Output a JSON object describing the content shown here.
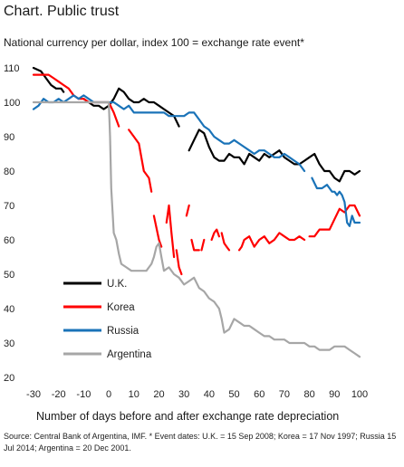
{
  "title": "Chart. Public trust",
  "subtitle": "National currency per dollar, index 100 = exchange rate event*",
  "xlabel": "Number of days before and after exchange rate depreciation",
  "source": "Source: Central Bank of Argentina, IMF. * Event dates: U.K. = 15 Sep 2008; Korea = 17 Nov 1997; Russia 15 Jul 2014; Argentina = 20 Dec 2001.",
  "chart_data": {
    "type": "line",
    "title": "Chart. Public trust",
    "xlabel": "Number of days before and after exchange rate depreciation",
    "ylabel": "National currency per dollar, index 100 = exchange rate event*",
    "xlim": [
      -30,
      100
    ],
    "ylim": [
      20,
      110
    ],
    "xticks": [
      -30,
      -20,
      -10,
      0,
      10,
      20,
      30,
      40,
      50,
      60,
      70,
      80,
      90,
      100
    ],
    "yticks": [
      20,
      30,
      40,
      50,
      60,
      70,
      80,
      90,
      100,
      110
    ],
    "grid": false,
    "legend_position": "bottom-left",
    "series": [
      {
        "name": "U.K.",
        "color": "#000000",
        "points": [
          [
            -30,
            110
          ],
          [
            -27,
            109
          ],
          [
            -25,
            107
          ],
          [
            -23,
            105
          ],
          [
            -21,
            104
          ],
          [
            -19,
            104
          ],
          [
            -18,
            103
          ],
          null,
          [
            -14,
            103
          ],
          null,
          [
            -10,
            101
          ],
          [
            -8,
            100
          ],
          [
            -6,
            99
          ],
          [
            -4,
            99
          ],
          [
            -2,
            98
          ],
          [
            0,
            99
          ],
          [
            2,
            101
          ],
          [
            4,
            104
          ],
          [
            6,
            103
          ],
          [
            8,
            101
          ],
          [
            10,
            100
          ],
          [
            12,
            100
          ],
          [
            14,
            101
          ],
          [
            16,
            100
          ],
          [
            18,
            100
          ],
          [
            20,
            99
          ],
          [
            22,
            98
          ],
          [
            24,
            97
          ],
          [
            26,
            96
          ],
          [
            28,
            93
          ],
          null,
          [
            32,
            86
          ],
          [
            34,
            89
          ],
          [
            36,
            92
          ],
          [
            38,
            91
          ],
          [
            40,
            87
          ],
          [
            42,
            84
          ],
          [
            44,
            83
          ],
          [
            46,
            83
          ],
          [
            48,
            85
          ],
          [
            50,
            84
          ],
          [
            52,
            84
          ],
          [
            54,
            82
          ],
          [
            56,
            85
          ],
          [
            58,
            84
          ],
          [
            60,
            83
          ],
          [
            62,
            85
          ],
          [
            64,
            84
          ],
          [
            66,
            85
          ],
          [
            68,
            86
          ],
          [
            70,
            84
          ],
          [
            72,
            83
          ],
          [
            74,
            82
          ],
          [
            76,
            82
          ],
          [
            78,
            83
          ],
          [
            80,
            84
          ],
          [
            82,
            85
          ],
          [
            84,
            82
          ],
          [
            86,
            80
          ],
          [
            88,
            80
          ],
          [
            90,
            78
          ],
          [
            92,
            77
          ],
          [
            94,
            80
          ],
          [
            96,
            80
          ],
          [
            98,
            79
          ],
          [
            100,
            80
          ]
        ]
      },
      {
        "name": "Korea",
        "color": "#ff0000",
        "points": [
          [
            -30,
            108
          ],
          [
            -28,
            108
          ],
          [
            -26,
            108
          ],
          [
            -24,
            108
          ],
          [
            -22,
            107
          ],
          [
            -20,
            106
          ],
          [
            -18,
            105
          ],
          [
            -16,
            104
          ],
          [
            -14,
            102
          ],
          [
            -12,
            101
          ],
          [
            -10,
            101
          ],
          [
            -8,
            100
          ],
          [
            -6,
            100
          ],
          [
            -4,
            100
          ],
          [
            -2,
            100
          ],
          [
            0,
            100
          ],
          [
            2,
            97
          ],
          [
            4,
            93
          ],
          null,
          [
            8,
            92
          ],
          [
            10,
            90
          ],
          [
            12,
            88
          ],
          [
            14,
            80
          ],
          [
            16,
            78
          ],
          [
            17,
            74
          ],
          null,
          [
            18,
            67
          ],
          [
            20,
            60
          ],
          [
            21,
            58
          ],
          null,
          [
            23,
            65
          ],
          [
            24,
            70
          ],
          [
            25,
            62
          ],
          [
            26,
            55
          ],
          null,
          [
            27,
            57
          ],
          [
            28,
            52
          ],
          [
            29,
            50
          ],
          null,
          [
            31,
            67
          ],
          [
            32,
            70
          ],
          null,
          [
            33,
            60
          ],
          [
            34,
            57
          ],
          [
            36,
            57
          ],
          null,
          [
            37,
            57
          ],
          [
            38,
            60
          ],
          null,
          [
            41,
            60
          ],
          [
            42,
            62
          ],
          [
            43,
            63
          ],
          [
            44,
            61
          ],
          null,
          [
            45,
            62
          ],
          [
            46,
            59
          ],
          [
            47,
            58
          ],
          [
            48,
            57
          ],
          null,
          [
            52,
            57
          ],
          [
            53,
            58
          ],
          [
            54,
            60
          ],
          [
            56,
            61
          ],
          [
            58,
            58
          ],
          [
            60,
            60
          ],
          [
            62,
            61
          ],
          [
            64,
            59
          ],
          [
            66,
            60
          ],
          [
            68,
            62
          ],
          [
            70,
            61
          ],
          [
            72,
            60
          ],
          [
            74,
            60
          ],
          [
            76,
            61
          ],
          [
            78,
            60
          ],
          null,
          [
            80,
            61
          ],
          [
            82,
            61
          ],
          [
            84,
            63
          ],
          [
            86,
            63
          ],
          [
            88,
            63
          ],
          [
            90,
            66
          ],
          [
            92,
            69
          ],
          [
            94,
            68
          ],
          [
            96,
            70
          ],
          [
            98,
            70
          ],
          [
            100,
            67
          ]
        ]
      },
      {
        "name": "Russia",
        "color": "#1a73b8",
        "points": [
          [
            -30,
            98
          ],
          [
            -28,
            99
          ],
          [
            -26,
            101
          ],
          [
            -24,
            100
          ],
          [
            -22,
            100
          ],
          [
            -20,
            101
          ],
          [
            -18,
            100
          ],
          [
            -16,
            101
          ],
          [
            -14,
            102
          ],
          [
            -12,
            101
          ],
          [
            -10,
            102
          ],
          [
            -8,
            101
          ],
          [
            -6,
            100
          ],
          [
            -4,
            100
          ],
          [
            -2,
            100
          ],
          [
            0,
            100
          ],
          [
            2,
            100
          ],
          [
            4,
            99
          ],
          [
            6,
            98
          ],
          [
            8,
            99
          ],
          [
            10,
            97
          ],
          [
            12,
            97
          ],
          [
            14,
            97
          ],
          [
            16,
            97
          ],
          [
            18,
            97
          ],
          [
            20,
            97
          ],
          [
            22,
            97
          ],
          [
            24,
            96
          ],
          [
            26,
            96
          ],
          [
            28,
            96
          ],
          [
            30,
            96
          ],
          [
            32,
            97
          ],
          [
            34,
            97
          ],
          [
            36,
            95
          ],
          [
            38,
            93
          ],
          [
            40,
            92
          ],
          [
            42,
            90
          ],
          [
            44,
            89
          ],
          [
            46,
            88
          ],
          [
            48,
            88
          ],
          [
            50,
            89
          ],
          [
            52,
            88
          ],
          [
            54,
            87
          ],
          [
            56,
            86
          ],
          [
            58,
            85
          ],
          [
            60,
            86
          ],
          [
            62,
            86
          ],
          [
            64,
            85
          ],
          [
            66,
            84
          ],
          [
            68,
            84
          ],
          [
            70,
            85
          ],
          [
            72,
            84
          ],
          [
            74,
            83
          ],
          [
            76,
            82
          ],
          [
            78,
            80
          ],
          null,
          [
            81,
            78
          ],
          [
            83,
            75
          ],
          [
            85,
            75
          ],
          [
            87,
            76
          ],
          [
            88,
            75
          ],
          [
            89,
            74
          ],
          [
            90,
            74
          ],
          [
            91,
            73
          ],
          [
            92,
            74
          ],
          [
            93,
            73
          ],
          [
            94,
            71
          ],
          [
            95,
            65
          ],
          [
            96,
            64
          ],
          [
            97,
            67
          ],
          [
            98,
            65
          ],
          [
            100,
            65
          ]
        ]
      },
      {
        "name": "Argentina",
        "color": "#a6a6a6",
        "points": [
          [
            -30,
            100
          ],
          [
            -25,
            100
          ],
          [
            -20,
            100
          ],
          [
            -15,
            100
          ],
          [
            -10,
            100
          ],
          [
            -5,
            100
          ],
          [
            0,
            100
          ],
          [
            0.5,
            90
          ],
          [
            1,
            75
          ],
          [
            2,
            62
          ],
          [
            3,
            60
          ],
          [
            4,
            56
          ],
          [
            5,
            53
          ],
          [
            7,
            52
          ],
          [
            9,
            51
          ],
          [
            11,
            51
          ],
          [
            13,
            51
          ],
          [
            15,
            51
          ],
          [
            16,
            52
          ],
          [
            17,
            53
          ],
          [
            18,
            55
          ],
          [
            19,
            58
          ],
          [
            20,
            59
          ],
          [
            21,
            55
          ],
          [
            22,
            51
          ],
          [
            24,
            52
          ],
          [
            26,
            50
          ],
          [
            28,
            49
          ],
          [
            30,
            47
          ],
          [
            32,
            48
          ],
          [
            34,
            49
          ],
          [
            36,
            46
          ],
          [
            38,
            45
          ],
          [
            40,
            43
          ],
          [
            42,
            42
          ],
          [
            44,
            40
          ],
          [
            45,
            37
          ],
          [
            46,
            33
          ],
          [
            48,
            34
          ],
          [
            50,
            37
          ],
          [
            52,
            36
          ],
          [
            54,
            35
          ],
          [
            56,
            35
          ],
          [
            58,
            34
          ],
          [
            60,
            33
          ],
          [
            62,
            32
          ],
          [
            64,
            32
          ],
          [
            66,
            31
          ],
          [
            68,
            31
          ],
          [
            70,
            31
          ],
          [
            72,
            30
          ],
          [
            74,
            30
          ],
          [
            76,
            30
          ],
          [
            78,
            30
          ],
          [
            80,
            29
          ],
          [
            82,
            29
          ],
          [
            84,
            28
          ],
          [
            86,
            28
          ],
          [
            88,
            28
          ],
          [
            90,
            29
          ],
          [
            92,
            29
          ],
          [
            94,
            29
          ],
          [
            96,
            28
          ],
          [
            98,
            27
          ],
          [
            100,
            26
          ]
        ]
      }
    ]
  }
}
